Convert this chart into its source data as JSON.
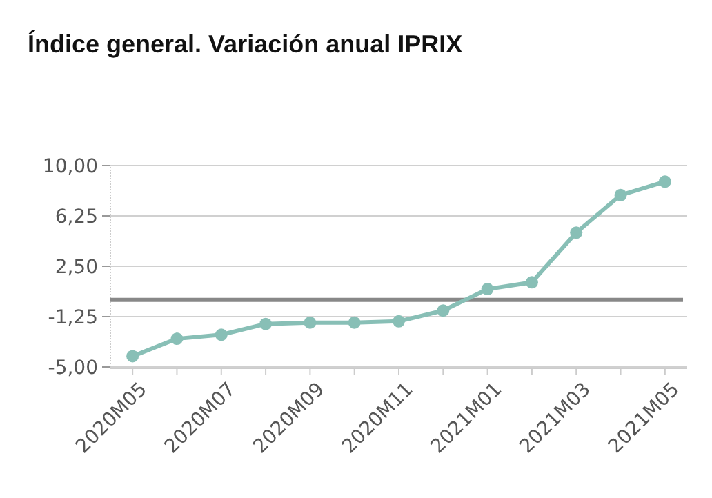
{
  "chart_data": {
    "type": "line",
    "title": "Índice general. Variación anual IPRIX",
    "categories": [
      "2020M05",
      null,
      "2020M07",
      null,
      "2020M09",
      null,
      "2020M11",
      null,
      "2021M01",
      null,
      "2021M03",
      null,
      "2021M05"
    ],
    "series": [
      {
        "color": "#88bfb6",
        "values": [
          -4.2,
          -2.9,
          -2.6,
          -1.8,
          -1.7,
          -1.7,
          -1.6,
          -0.8,
          0.8,
          1.3,
          5.0,
          7.8,
          8.8
        ]
      }
    ],
    "ylim": [
      -5,
      10
    ],
    "yticks": [
      {
        "value": -5,
        "label": "-5,00"
      },
      {
        "value": -1.25,
        "label": "-1,25"
      },
      {
        "value": 2.5,
        "label": "2,50"
      },
      {
        "value": 6.25,
        "label": "6,25"
      },
      {
        "value": 10,
        "label": "10,00"
      }
    ],
    "ref_lines": [
      {
        "axis": "y",
        "value": 0,
        "color": "#888888"
      }
    ],
    "grid": "y",
    "marker": "circle",
    "line_style": "solid"
  }
}
